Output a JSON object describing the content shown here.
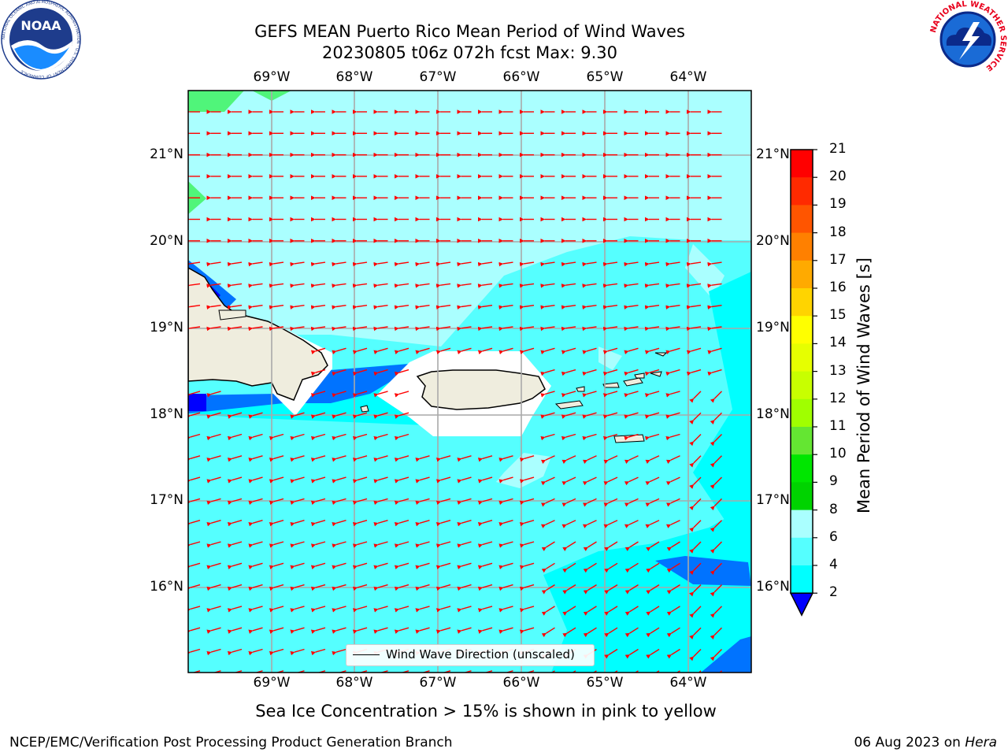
{
  "title": {
    "line1": "GEFS MEAN Puerto Rico Mean Period of Wind Waves",
    "line2": "20230805 t06z 072h fcst   Max: 9.30"
  },
  "logos": {
    "noaa_text": "NOAA",
    "noaa_ring": "NATIONAL OCEANIC AND ATMOSPHERIC ADMINISTRATION · U.S. DEPARTMENT OF COMMERCE",
    "nws_ring": "NATIONAL WEATHER SERVICE"
  },
  "map": {
    "lon_labels": [
      "69°W",
      "68°W",
      "67°W",
      "66°W",
      "65°W",
      "64°W"
    ],
    "lat_labels": [
      "21°N",
      "20°N",
      "19°N",
      "18°N",
      "17°N",
      "16°N"
    ],
    "legend_label": "Wind Wave Direction (unscaled)",
    "vector_color": "#ff0000",
    "land_color": "#efedde"
  },
  "colorbar": {
    "label": "Mean Period of Wind Waves [s]",
    "ticks": [
      "21",
      "20",
      "19",
      "18",
      "17",
      "16",
      "15",
      "14",
      "13",
      "12",
      "11",
      "10",
      "9",
      "8",
      "6",
      "4",
      "2"
    ],
    "colors": [
      "#ff0000",
      "#ff2a00",
      "#ff5500",
      "#ff8000",
      "#ffaa00",
      "#ffd400",
      "#ffff00",
      "#e6ff00",
      "#c8ff00",
      "#a0ff00",
      "#64e632",
      "#00e600",
      "#00d300",
      "#50f57a",
      "#aaffff",
      "#55ffff",
      "#00ffff",
      "#0073ff",
      "#0000ff"
    ]
  },
  "caption": "Sea Ice Concentration > 15% is shown in pink to yellow",
  "footer": {
    "left": "NCEP/EMC/Verification Post Processing Product Generation Branch",
    "right_date": "06 Aug 2023 on ",
    "right_host": "Hera"
  }
}
